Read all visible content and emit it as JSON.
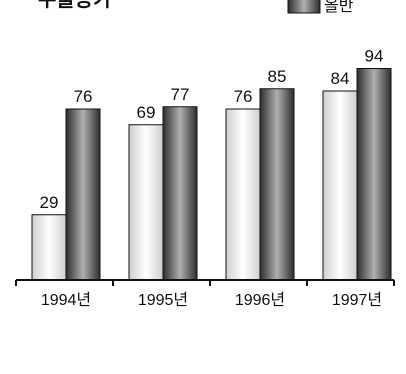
{
  "title_fragment": "수출증가",
  "legend": [
    {
      "label": "올반",
      "swatch": "dark"
    }
  ],
  "chart_data": {
    "type": "bar",
    "categories": [
      "1994년",
      "1995년",
      "1996년",
      "1997년"
    ],
    "series": [
      {
        "values": [
          29,
          69,
          76,
          84
        ],
        "style": "light"
      },
      {
        "values": [
          76,
          77,
          85,
          94
        ],
        "style": "dark"
      }
    ],
    "ylim": [
      0,
      100
    ],
    "grid": false,
    "legend_position": "top-right"
  },
  "colors": {
    "light_edge": "#cfcfcf",
    "light_center": "#ffffff",
    "dark_edge": "#3a3a3a",
    "dark_center": "#a8a8a8",
    "axis": "#111111"
  }
}
